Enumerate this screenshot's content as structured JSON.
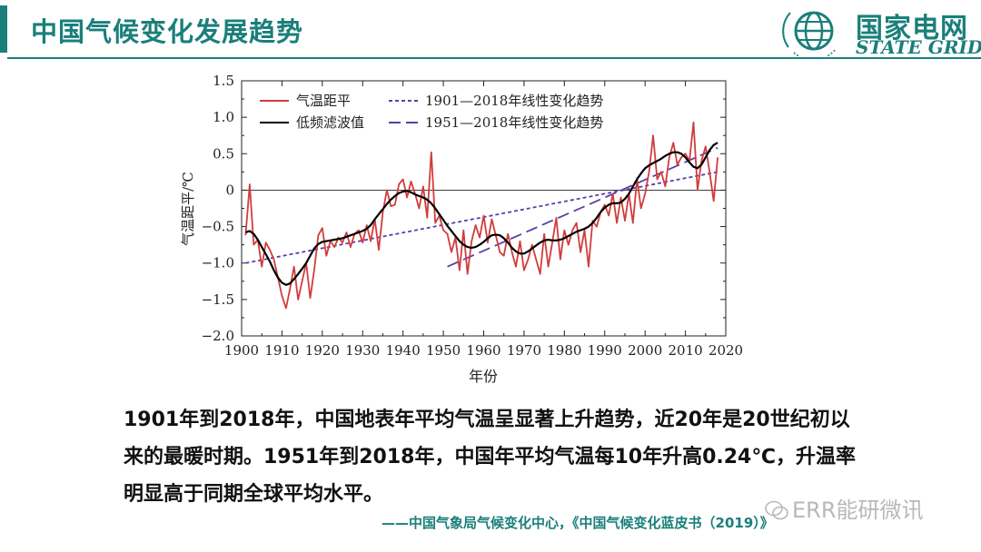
{
  "header": {
    "title": "中国气候变化发展趋势",
    "brand_cn": "国家电网",
    "brand_en": "STATE GRID",
    "accent_color": "#1a7f7a"
  },
  "chart_data": {
    "type": "line",
    "title": "",
    "xlabel": "年份",
    "ylabel": "气温距平/℃",
    "xlim": [
      1900,
      2020
    ],
    "ylim": [
      -2.0,
      1.5
    ],
    "xticks": [
      1900,
      1910,
      1920,
      1930,
      1940,
      1950,
      1960,
      1970,
      1980,
      1990,
      2000,
      2010,
      2020
    ],
    "yticks": [
      -2.0,
      -1.5,
      -1.0,
      -0.5,
      0,
      0.5,
      1.0,
      1.5
    ],
    "ytick_labels": [
      "−2.0",
      "−1.5",
      "−1.0",
      "−0.5",
      "0",
      "0.5",
      "1.0",
      "1.5"
    ],
    "grid": false,
    "zero_line": true,
    "legend_position": "top-left",
    "x": [
      1901,
      1902,
      1903,
      1904,
      1905,
      1906,
      1907,
      1908,
      1909,
      1910,
      1911,
      1912,
      1913,
      1914,
      1915,
      1916,
      1917,
      1918,
      1919,
      1920,
      1921,
      1922,
      1923,
      1924,
      1925,
      1926,
      1927,
      1928,
      1929,
      1930,
      1931,
      1932,
      1933,
      1934,
      1935,
      1936,
      1937,
      1938,
      1939,
      1940,
      1941,
      1942,
      1943,
      1944,
      1945,
      1946,
      1947,
      1948,
      1949,
      1950,
      1951,
      1952,
      1953,
      1954,
      1955,
      1956,
      1957,
      1958,
      1959,
      1960,
      1961,
      1962,
      1963,
      1964,
      1965,
      1966,
      1967,
      1968,
      1969,
      1970,
      1971,
      1972,
      1973,
      1974,
      1975,
      1976,
      1977,
      1978,
      1979,
      1980,
      1981,
      1982,
      1983,
      1984,
      1985,
      1986,
      1987,
      1988,
      1989,
      1990,
      1991,
      1992,
      1993,
      1994,
      1995,
      1996,
      1997,
      1998,
      1999,
      2000,
      2001,
      2002,
      2003,
      2004,
      2005,
      2006,
      2007,
      2008,
      2009,
      2010,
      2011,
      2012,
      2013,
      2014,
      2015,
      2016,
      2017,
      2018
    ],
    "series": [
      {
        "name": "气温距平",
        "color": "#d23c3c",
        "style": "solid",
        "values": [
          -0.62,
          0.08,
          -0.75,
          -0.68,
          -1.05,
          -0.72,
          -0.82,
          -0.95,
          -1.2,
          -1.45,
          -1.62,
          -1.35,
          -1.05,
          -1.5,
          -1.25,
          -1.0,
          -1.48,
          -1.1,
          -0.62,
          -0.52,
          -0.9,
          -0.7,
          -0.78,
          -0.65,
          -0.72,
          -0.58,
          -0.78,
          -0.6,
          -0.55,
          -0.72,
          -0.48,
          -0.7,
          -0.4,
          -0.82,
          -0.3,
          0.0,
          -0.22,
          -0.2,
          0.08,
          0.15,
          -0.1,
          0.12,
          -0.05,
          -0.25,
          0.05,
          -0.38,
          0.52,
          -0.45,
          -0.35,
          -0.55,
          -0.6,
          -0.85,
          -0.65,
          -1.1,
          -0.55,
          -1.15,
          -0.7,
          -0.48,
          -0.65,
          -0.35,
          -0.72,
          -0.4,
          -0.62,
          -0.85,
          -0.9,
          -0.6,
          -0.85,
          -1.05,
          -0.7,
          -1.1,
          -0.95,
          -0.75,
          -0.95,
          -1.15,
          -0.6,
          -1.05,
          -0.72,
          -0.38,
          -0.95,
          -0.55,
          -0.75,
          -0.55,
          -0.45,
          -0.85,
          -0.55,
          -1.05,
          -0.42,
          -0.5,
          -0.3,
          -0.2,
          -0.35,
          -0.05,
          -0.45,
          -0.1,
          -0.42,
          -0.05,
          -0.45,
          0.15,
          -0.25,
          -0.05,
          0.25,
          0.75,
          0.15,
          0.25,
          0.05,
          0.45,
          0.65,
          0.35,
          0.45,
          0.5,
          0.4,
          0.93,
          0.0,
          0.4,
          0.6,
          0.25,
          -0.15,
          0.45
        ]
      },
      {
        "name": "低频滤波值",
        "color": "#000000",
        "style": "solid",
        "values": [
          -0.58,
          -0.56,
          -0.6,
          -0.68,
          -0.78,
          -0.88,
          -0.98,
          -1.1,
          -1.2,
          -1.27,
          -1.3,
          -1.28,
          -1.22,
          -1.15,
          -1.08,
          -1.0,
          -0.9,
          -0.8,
          -0.74,
          -0.71,
          -0.7,
          -0.69,
          -0.68,
          -0.67,
          -0.66,
          -0.64,
          -0.62,
          -0.6,
          -0.58,
          -0.56,
          -0.53,
          -0.48,
          -0.4,
          -0.33,
          -0.26,
          -0.19,
          -0.13,
          -0.08,
          -0.04,
          -0.02,
          -0.01,
          -0.03,
          -0.06,
          -0.08,
          -0.1,
          -0.13,
          -0.18,
          -0.25,
          -0.33,
          -0.41,
          -0.49,
          -0.56,
          -0.63,
          -0.7,
          -0.75,
          -0.78,
          -0.79,
          -0.78,
          -0.75,
          -0.71,
          -0.66,
          -0.62,
          -0.61,
          -0.62,
          -0.66,
          -0.72,
          -0.79,
          -0.84,
          -0.87,
          -0.87,
          -0.84,
          -0.8,
          -0.76,
          -0.72,
          -0.69,
          -0.68,
          -0.69,
          -0.69,
          -0.68,
          -0.66,
          -0.63,
          -0.6,
          -0.57,
          -0.55,
          -0.53,
          -0.5,
          -0.45,
          -0.38,
          -0.3,
          -0.24,
          -0.2,
          -0.18,
          -0.18,
          -0.17,
          -0.12,
          -0.05,
          0.05,
          0.15,
          0.23,
          0.3,
          0.34,
          0.37,
          0.4,
          0.43,
          0.47,
          0.5,
          0.52,
          0.52,
          0.5,
          0.45,
          0.38,
          0.32,
          0.3,
          0.35,
          0.45,
          0.55,
          0.62,
          0.65
        ]
      }
    ],
    "trend_lines": [
      {
        "name": "1901—2018年线性变化趋势",
        "color": "#5b3fa8",
        "style": "dotted",
        "x": [
          1901,
          2018
        ],
        "y": [
          -1.0,
          0.25
        ]
      },
      {
        "name": "1951—2018年线性变化趋势",
        "color": "#5b3fa8",
        "style": "dashed",
        "x": [
          1951,
          2018
        ],
        "y": [
          -1.05,
          0.58
        ]
      }
    ]
  },
  "body": {
    "line1": "1901年到2018年，中国地表年平均气温呈显著上升趋势，近20年是20世纪初以",
    "line2": "来的最暖时期。1951年到2018年，中国年平均气温每10年升高0.24℃，升温率",
    "line3": "明显高于同期全球平均水平。"
  },
  "source": "——中国气象局气候变化中心，《中国气候变化蓝皮书（2019）》",
  "watermark": "ERR能研微讯"
}
